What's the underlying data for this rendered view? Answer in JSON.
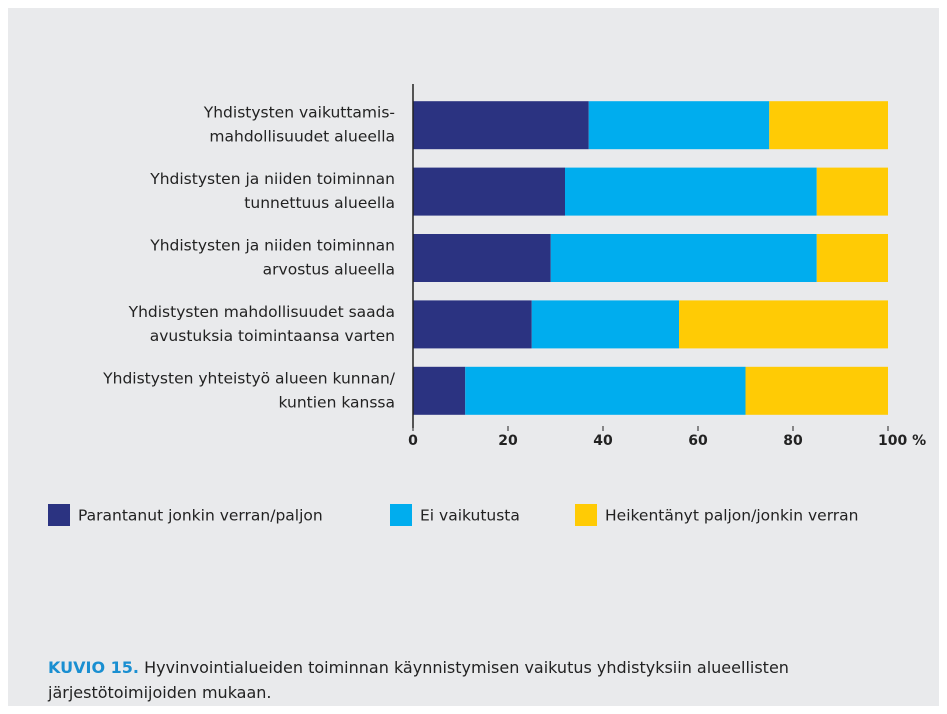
{
  "chart_data": {
    "type": "stacked-barh",
    "categories": [
      [
        "Yhdistysten vaikuttamis-",
        "mahdollisuudet alueella"
      ],
      [
        "Yhdistysten ja niiden toiminnan",
        "tunnettuus alueella"
      ],
      [
        "Yhdistysten ja niiden toiminnan",
        "arvostus alueella"
      ],
      [
        "Yhdistysten mahdollisuudet saada",
        "avustuksia toimintaansa varten"
      ],
      [
        "Yhdistysten yhteistyö alueen kunnan/",
        "kuntien kanssa"
      ]
    ],
    "series": [
      {
        "name": "Parantanut jonkin verran/paljon",
        "color": "#2b3381",
        "values": [
          37,
          32,
          29,
          25,
          11
        ]
      },
      {
        "name": "Ei vaikutusta",
        "color": "#00adee",
        "values": [
          38,
          53,
          56,
          31,
          59
        ]
      },
      {
        "name": "Heikentänyt paljon/jonkin verran",
        "color": "#ffcb05",
        "values": [
          25,
          15,
          15,
          44,
          30
        ]
      }
    ],
    "xlim": [
      0,
      100
    ],
    "xticks": [
      0,
      20,
      40,
      60,
      80,
      {
        "value": 100,
        "label": "100 %"
      }
    ],
    "grid": false,
    "legend": "bottom",
    "caption_label": "KUVIO 15.",
    "caption": "Hyvinvointialueiden toiminnan käynnistymisen vaikutus yhdistyksiin alueellisten järjestötoimijoiden mukaan."
  }
}
